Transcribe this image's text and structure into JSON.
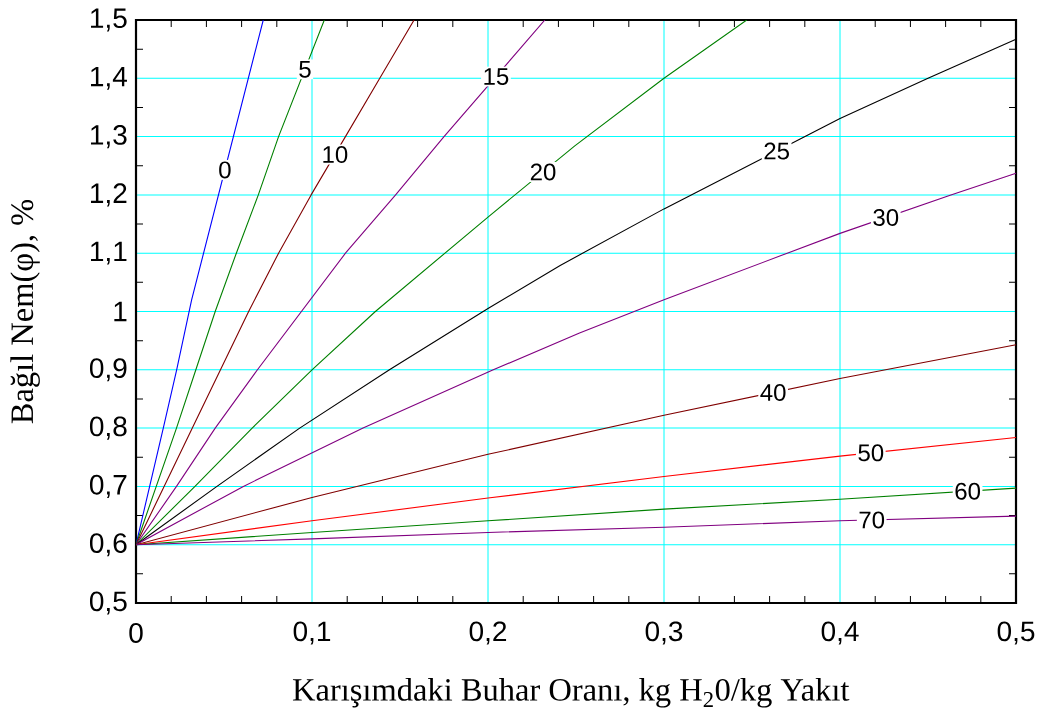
{
  "chart_data": {
    "type": "line",
    "xlabel": "Karışımdaki Buhar Oranı, kg H$_{2}$0/kg Yakıt",
    "ylabel": "Bağıl Nem(φ), %",
    "xlim": [
      0,
      0.5
    ],
    "ylim": [
      0.5,
      1.5
    ],
    "xticks": [
      0,
      {
        "value": 0.1,
        "label": "0,1"
      },
      {
        "value": 0.2,
        "label": "0,2"
      },
      {
        "value": 0.3,
        "label": "0,3"
      },
      {
        "value": 0.4,
        "label": "0,4"
      },
      {
        "value": 0.5,
        "label": "0,5"
      }
    ],
    "yticks": [
      {
        "value": 0.5,
        "label": "0,5"
      },
      {
        "value": 0.6,
        "label": "0,6"
      },
      {
        "value": 0.7,
        "label": "0,7"
      },
      {
        "value": 0.8,
        "label": "0,8"
      },
      {
        "value": 0.9,
        "label": "0,9"
      },
      1,
      {
        "value": 1.1,
        "label": "1,1"
      },
      {
        "value": 1.2,
        "label": "1,2"
      },
      {
        "value": 1.3,
        "label": "1,3"
      },
      {
        "value": 1.4,
        "label": "1,4"
      },
      {
        "value": 1.5,
        "label": "1,5"
      }
    ],
    "grid": true,
    "series": [
      {
        "name": "0",
        "color": "#0000ff",
        "x": [
          0,
          0.0155,
          0.0231,
          0.0316,
          0.0723
        ],
        "values": [
          0.6,
          0.8,
          0.9,
          1.02,
          1.5
        ]
      },
      {
        "name": "5",
        "color": "#008000",
        "x": [
          0,
          0.023,
          0.034,
          0.045,
          0.057,
          0.0695,
          0.081,
          0.107
        ],
        "values": [
          0.6,
          0.8,
          0.9,
          1.0,
          1.1,
          1.2,
          1.3,
          1.5
        ]
      },
      {
        "name": "10",
        "color": "#800000",
        "x": [
          0,
          0.032,
          0.048,
          0.064,
          0.081,
          0.0995,
          0.119,
          0.1385,
          0.158
        ],
        "values": [
          0.6,
          0.8,
          0.9,
          1.0,
          1.1,
          1.2,
          1.3,
          1.4,
          1.5
        ]
      },
      {
        "name": "15",
        "color": "#800080",
        "x": [
          0,
          0.023,
          0.045,
          0.069,
          0.094,
          0.119,
          0.1475,
          0.175,
          0.2323
        ],
        "values": [
          0.6,
          0.7,
          0.8,
          0.9,
          1.0,
          1.1,
          1.2,
          1.3,
          1.5
        ]
      },
      {
        "name": "20",
        "color": "#008000",
        "x": [
          0,
          0.0335,
          0.066,
          0.1,
          0.136,
          0.2,
          0.2493,
          0.3,
          0.347
        ],
        "values": [
          0.6,
          0.7,
          0.8,
          0.9,
          1.0,
          1.162,
          1.284,
          1.4,
          1.5
        ]
      },
      {
        "name": "25",
        "color": "#000000",
        "x": [
          0,
          0.046,
          0.093,
          0.144,
          0.2,
          0.241,
          0.3,
          0.4,
          0.45,
          0.5
        ],
        "values": [
          0.6,
          0.7,
          0.8,
          0.9,
          1.005,
          1.079,
          1.176,
          1.331,
          1.4,
          1.467
        ]
      },
      {
        "name": "30",
        "color": "#800080",
        "x": [
          0,
          0.061,
          0.129,
          0.203,
          0.252,
          0.3,
          0.37,
          0.4,
          0.463,
          0.5
        ],
        "values": [
          0.6,
          0.7,
          0.8,
          0.9,
          0.963,
          1.02,
          1.1,
          1.134,
          1.2,
          1.237
        ]
      },
      {
        "name": "40",
        "color": "#800000",
        "x": [
          0,
          0.1,
          0.2,
          0.3,
          0.4,
          0.5
        ],
        "values": [
          0.6,
          0.681,
          0.755,
          0.822,
          0.885,
          0.943
        ]
      },
      {
        "name": "50",
        "color": "#ff0000",
        "x": [
          0,
          0.1,
          0.2,
          0.3,
          0.4,
          0.5
        ],
        "values": [
          0.6,
          0.641,
          0.68,
          0.717,
          0.752,
          0.784
        ]
      },
      {
        "name": "60",
        "color": "#008000",
        "x": [
          0,
          0.1,
          0.2,
          0.3,
          0.4,
          0.5
        ],
        "values": [
          0.6,
          0.621,
          0.641,
          0.661,
          0.678,
          0.697
        ]
      },
      {
        "name": "70",
        "color": "#800080",
        "x": [
          0,
          0.1,
          0.2,
          0.3,
          0.4,
          0.5
        ],
        "values": [
          0.6,
          0.61,
          0.621,
          0.63,
          0.641,
          0.649
        ]
      }
    ]
  }
}
